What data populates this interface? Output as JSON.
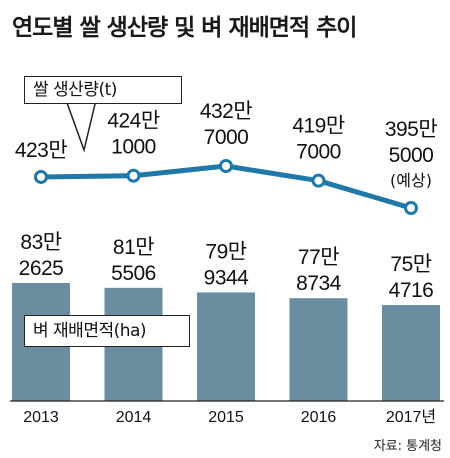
{
  "title": "연도별 쌀 생산량 및 벼 재배면적 추이",
  "source": "자료: 통계청",
  "colors": {
    "line": "#1f78a8",
    "bar": "#6a8ea0",
    "bg": "#ffffff"
  },
  "chart_data": {
    "type": "bar+line",
    "categories": [
      "2013",
      "2014",
      "2015",
      "2016",
      "2017년"
    ],
    "line_series": {
      "name": "쌀 생산량(t)",
      "values": [
        4230000,
        4241000,
        4327000,
        4197000,
        3955000
      ],
      "labels_top": [
        "423만",
        "424만",
        "432만",
        "419만",
        "395만"
      ],
      "labels_bottom": [
        "",
        "1000",
        "7000",
        "7000",
        "5000"
      ],
      "notes": [
        "",
        "",
        "",
        "",
        "(예상)"
      ]
    },
    "bar_series": {
      "name": "벼 재배면적(ha)",
      "values": [
        832625,
        815506,
        799344,
        778734,
        754716
      ],
      "labels_top": [
        "83만",
        "81만",
        "79만",
        "77만",
        "75만"
      ],
      "labels_bottom": [
        "2625",
        "5506",
        "9344",
        "8734",
        "4716"
      ]
    }
  }
}
